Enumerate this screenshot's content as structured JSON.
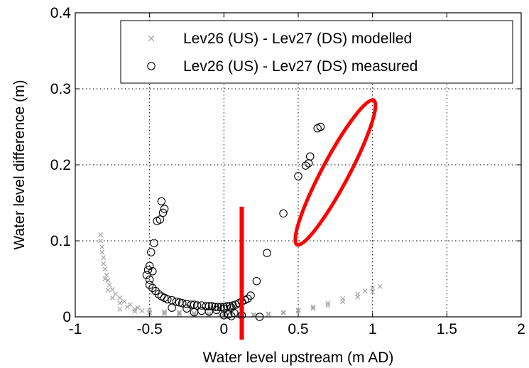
{
  "chart_data": {
    "type": "scatter",
    "xlabel": "Water level upstream (m AD)",
    "ylabel": "Water level difference (m)",
    "xlim": [
      -1,
      2
    ],
    "ylim": [
      0,
      0.4
    ],
    "xticks": [
      -1,
      -0.5,
      0,
      0.5,
      1,
      1.5,
      2
    ],
    "xtick_labels": [
      "-1",
      "-0.5",
      "0",
      "0.5",
      "1",
      "1.5",
      "2"
    ],
    "yticks": [
      0,
      0.1,
      0.2,
      0.3,
      0.4
    ],
    "ytick_labels": [
      "0",
      "0.1",
      "0.2",
      "0.3",
      "0.4"
    ],
    "grid": true,
    "legend_position": "top-right",
    "series": [
      {
        "name": "Lev26 (US) - Lev27 (DS) modelled",
        "marker": "x",
        "color": "#a9a9a9",
        "x": [
          -0.83,
          -0.83,
          -0.82,
          -0.82,
          -0.81,
          -0.81,
          -0.8,
          -0.79,
          -0.78,
          -0.77,
          -0.75,
          -0.73,
          -0.7,
          -0.67,
          -0.63,
          -0.58,
          -0.5,
          -0.4,
          -0.3,
          -0.2,
          -0.1,
          -0.03,
          0.1,
          0.2,
          0.3,
          0.4,
          0.5,
          0.6,
          0.7,
          0.8,
          0.9,
          0.95,
          1.0,
          1.05,
          -0.8,
          -0.78,
          -0.75,
          -0.7,
          -0.65,
          -0.6,
          -0.55,
          -0.5,
          -0.4,
          -0.3,
          -0.2,
          -0.1,
          0.0,
          -0.1,
          -0.2,
          -0.3,
          -0.4,
          -0.5,
          -0.6,
          -0.7,
          0.0,
          0.1,
          0.2,
          0.3,
          0.4,
          0.5,
          0.6,
          0.7,
          0.8,
          0.9,
          1.0
        ],
        "y": [
          0.108,
          0.1,
          0.092,
          0.085,
          0.078,
          0.07,
          0.063,
          0.055,
          0.048,
          0.042,
          0.036,
          0.03,
          0.025,
          0.02,
          0.016,
          0.012,
          0.009,
          0.007,
          0.006,
          0.005,
          0.004,
          0.003,
          0.003,
          0.003,
          0.004,
          0.006,
          0.009,
          0.013,
          0.018,
          0.024,
          0.03,
          0.034,
          0.038,
          0.04,
          0.05,
          0.035,
          0.025,
          0.018,
          0.013,
          0.01,
          0.008,
          0.006,
          0.005,
          0.005,
          0.004,
          0.004,
          0.004,
          0.002,
          0.002,
          0.003,
          0.004,
          0.005,
          0.007,
          0.01,
          0.001,
          0.001,
          0.002,
          0.003,
          0.005,
          0.008,
          0.011,
          0.015,
          0.02,
          0.026,
          0.033
        ]
      },
      {
        "name": "Lev26 (US) - Lev27 (DS) measured",
        "marker": "o",
        "color": "#000000",
        "x": [
          -0.42,
          -0.4,
          -0.41,
          -0.43,
          -0.45,
          -0.47,
          -0.49,
          -0.5,
          -0.51,
          -0.52,
          -0.5,
          -0.48,
          -0.5,
          -0.48,
          -0.46,
          -0.44,
          -0.42,
          -0.4,
          -0.38,
          -0.35,
          -0.32,
          -0.3,
          -0.28,
          -0.25,
          -0.22,
          -0.2,
          -0.18,
          -0.15,
          -0.12,
          -0.1,
          -0.08,
          -0.06,
          -0.04,
          -0.02,
          0.0,
          0.02,
          0.04,
          0.06,
          0.08,
          0.1,
          0.12,
          0.14,
          0.16,
          0.18,
          -0.05,
          0.0,
          0.05,
          -0.1,
          0.03,
          0.07,
          -0.35,
          -0.25,
          -0.15,
          -0.2,
          0.0,
          0.05,
          0.12,
          0.22,
          0.24,
          0.29,
          0.4,
          0.5,
          0.55,
          0.57,
          0.58,
          0.63,
          0.65
        ],
        "y": [
          0.152,
          0.142,
          0.137,
          0.128,
          0.126,
          0.097,
          0.085,
          0.067,
          0.062,
          0.055,
          0.049,
          0.06,
          0.042,
          0.038,
          0.034,
          0.03,
          0.027,
          0.025,
          0.023,
          0.022,
          0.02,
          0.019,
          0.018,
          0.017,
          0.016,
          0.016,
          0.015,
          0.015,
          0.014,
          0.014,
          0.014,
          0.013,
          0.013,
          0.013,
          0.013,
          0.014,
          0.014,
          0.015,
          0.016,
          0.018,
          0.02,
          0.022,
          0.024,
          0.028,
          0.009,
          0.011,
          0.012,
          0.007,
          0.003,
          0.005,
          0.012,
          0.011,
          0.008,
          0.006,
          0.002,
          0.001,
          0.002,
          0.047,
          0.0,
          0.084,
          0.136,
          0.185,
          0.199,
          0.202,
          0.211,
          0.248,
          0.25
        ]
      }
    ],
    "annotations": [
      {
        "type": "ellipse",
        "color": "#ff0000",
        "center": [
          0.75,
          0.19
        ],
        "rx": 0.55,
        "ry": 0.09,
        "rotation_deg": -62
      },
      {
        "type": "line",
        "color": "#ff0000",
        "x": 0.12,
        "y_range": [
          -0.03,
          0.145
        ]
      }
    ]
  }
}
